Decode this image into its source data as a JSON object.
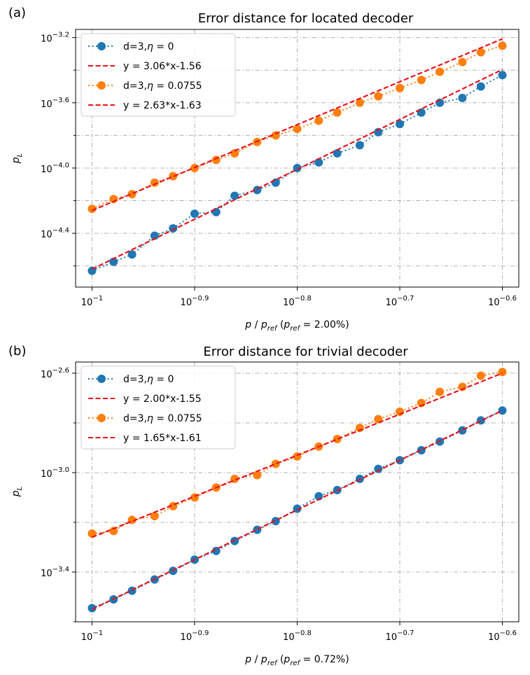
{
  "chart_data": [
    {
      "type": "line",
      "panel_label": "(a)",
      "title": "Error distance for located decoder",
      "xlabel": "p / p_ref   (p_ref = 2.00%)",
      "ylabel": "p_L",
      "xscale": "log10",
      "yscale": "log10",
      "xlim_log10": [
        -1.016,
        -0.584
      ],
      "ylim_log10": [
        -4.73,
        -3.15
      ],
      "xticks_log10": [
        -1.0,
        -0.9,
        -0.8,
        -0.7,
        -0.6
      ],
      "xtick_labels": [
        "10^-1",
        "10^-0.9",
        "10^-0.8",
        "10^-0.7",
        "10^-0.6"
      ],
      "yticks_log10": [
        -4.4,
        -4.0,
        -3.6,
        -3.2
      ],
      "ytick_labels": [
        "10^-4.4",
        "10^-4.0",
        "10^-3.6",
        "10^-3.2"
      ],
      "yminor_log10": [
        -4.6,
        -4.2,
        -3.8,
        -3.4
      ],
      "grid": true,
      "legend_position": "top-left",
      "x_log10": [
        -1.0,
        -0.975,
        -0.95,
        -0.9,
        -0.875,
        -0.85,
        -0.8,
        -0.775,
        -0.75,
        -0.7,
        -0.675,
        -0.65,
        -0.6
      ],
      "series": [
        {
          "name": "d=3,η = 0",
          "color": "#1f77b4",
          "x_log10": [
            -1.0,
            -0.979,
            -0.961,
            -0.939,
            -0.921,
            -0.9,
            -0.879,
            -0.861,
            -0.839,
            -0.821,
            -0.8,
            -0.779,
            -0.761,
            -0.739,
            -0.721,
            -0.7,
            -0.679,
            -0.661,
            -0.639,
            -0.621,
            -0.6
          ],
          "y_log10": [
            -4.63,
            -4.575,
            -4.53,
            -4.415,
            -4.37,
            -4.28,
            -4.27,
            -4.17,
            -4.135,
            -4.09,
            -4.0,
            -3.965,
            -3.91,
            -3.86,
            -3.78,
            -3.73,
            -3.66,
            -3.6,
            -3.57,
            -3.5,
            -3.43
          ]
        },
        {
          "name": "y = 3.06*x-1.56",
          "color": "#e8131b",
          "fit": {
            "slope": 3.06,
            "intercept": -1.56
          }
        },
        {
          "name": "d=3,η = 0.0755",
          "color": "#ff7f0e",
          "x_log10": [
            -1.0,
            -0.979,
            -0.961,
            -0.939,
            -0.921,
            -0.9,
            -0.879,
            -0.861,
            -0.839,
            -0.821,
            -0.8,
            -0.779,
            -0.761,
            -0.739,
            -0.721,
            -0.7,
            -0.679,
            -0.661,
            -0.639,
            -0.621,
            -0.6
          ],
          "y_log10": [
            -4.25,
            -4.19,
            -4.16,
            -4.09,
            -4.05,
            -4.0,
            -3.95,
            -3.91,
            -3.84,
            -3.8,
            -3.76,
            -3.71,
            -3.66,
            -3.6,
            -3.56,
            -3.51,
            -3.46,
            -3.41,
            -3.35,
            -3.29,
            -3.25
          ]
        },
        {
          "name": "y = 2.63*x-1.63",
          "color": "#e8131b",
          "fit": {
            "slope": 2.63,
            "intercept": -1.63
          }
        }
      ]
    },
    {
      "type": "line",
      "panel_label": "(b)",
      "title": "Error distance for trivial decoder",
      "xlabel": "p / p_ref   (p_ref = 0.72%)",
      "ylabel": "p_L",
      "xscale": "log10",
      "yscale": "log10",
      "xlim_log10": [
        -1.016,
        -0.584
      ],
      "ylim_log10": [
        -3.6,
        -2.555
      ],
      "xticks_log10": [
        -1.0,
        -0.9,
        -0.8,
        -0.7,
        -0.6
      ],
      "xtick_labels": [
        "10^-1",
        "10^-0.9",
        "10^-0.8",
        "10^-0.7",
        "10^-0.6"
      ],
      "yticks_log10": [
        -3.4,
        -3.0,
        -2.6
      ],
      "ytick_labels": [
        "10^-3.4",
        "10^-3.0",
        "10^-2.6"
      ],
      "yminor_log10": [
        -3.6,
        -3.2,
        -2.8
      ],
      "grid": true,
      "legend_position": "top-left",
      "series": [
        {
          "name": "d=3,η = 0",
          "color": "#1f77b4",
          "x_log10": [
            -1.0,
            -0.979,
            -0.961,
            -0.939,
            -0.921,
            -0.9,
            -0.879,
            -0.861,
            -0.839,
            -0.821,
            -0.8,
            -0.779,
            -0.761,
            -0.739,
            -0.721,
            -0.7,
            -0.679,
            -0.661,
            -0.639,
            -0.621,
            -0.6
          ],
          "y_log10": [
            -3.545,
            -3.51,
            -3.475,
            -3.43,
            -3.395,
            -3.35,
            -3.315,
            -3.275,
            -3.23,
            -3.195,
            -3.145,
            -3.095,
            -3.07,
            -3.025,
            -2.985,
            -2.95,
            -2.91,
            -2.875,
            -2.83,
            -2.79,
            -2.75
          ]
        },
        {
          "name": "y = 2.00*x-1.55",
          "color": "#e8131b",
          "fit": {
            "slope": 2.0,
            "intercept": -1.55
          }
        },
        {
          "name": "d=3,η = 0.0755",
          "color": "#ff7f0e",
          "x_log10": [
            -1.0,
            -0.979,
            -0.961,
            -0.939,
            -0.921,
            -0.9,
            -0.879,
            -0.861,
            -0.839,
            -0.821,
            -0.8,
            -0.779,
            -0.761,
            -0.739,
            -0.721,
            -0.7,
            -0.679,
            -0.661,
            -0.639,
            -0.621,
            -0.6
          ],
          "y_log10": [
            -3.245,
            -3.235,
            -3.19,
            -3.175,
            -3.135,
            -3.1,
            -3.06,
            -3.025,
            -3.01,
            -2.965,
            -2.935,
            -2.895,
            -2.865,
            -2.82,
            -2.785,
            -2.755,
            -2.72,
            -2.675,
            -2.655,
            -2.61,
            -2.595
          ]
        },
        {
          "name": "y = 1.65*x-1.61",
          "color": "#e8131b",
          "fit": {
            "slope": 1.65,
            "intercept": -1.61
          }
        }
      ]
    }
  ]
}
